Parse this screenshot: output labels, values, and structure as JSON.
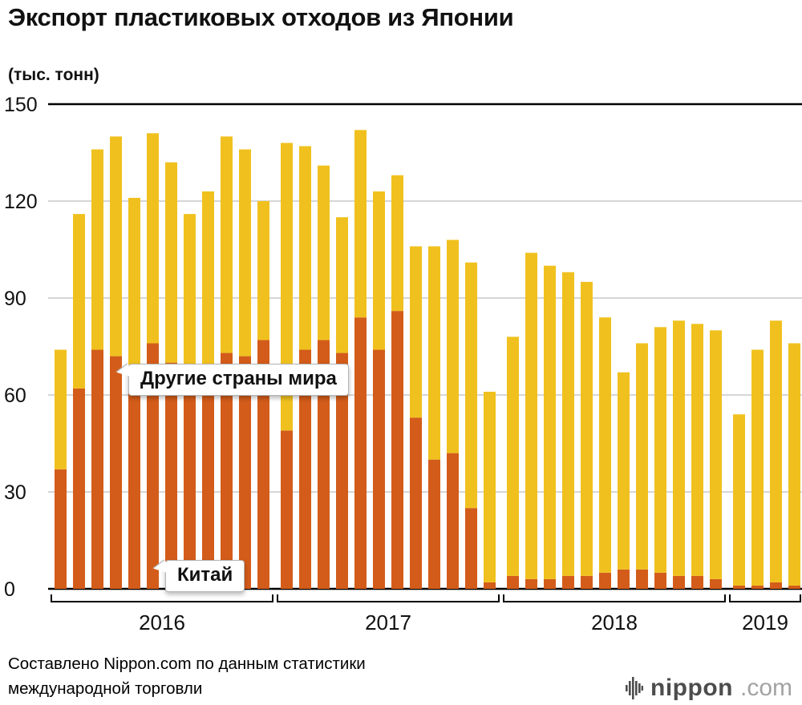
{
  "title": "Экспорт пластиковых отходов из Японии",
  "unit_label": "(тыс. тонн)",
  "annotations": {
    "others": "Другие страны мира",
    "china": "Китай"
  },
  "footer": {
    "source_line1": "Составлено Nippon.com по данным статистики",
    "source_line2": "международной торговли",
    "logo_name": "nippon",
    "logo_suffix": ".com"
  },
  "colors": {
    "china": "#d35c1a",
    "others": "#f0c11e",
    "grid": "#c8c8c8",
    "axis": "#000000"
  },
  "chart_data": {
    "type": "bar",
    "stacked": true,
    "title": "Экспорт пластиковых отходов из Японии",
    "ylabel": "тыс. тонн",
    "ylim": [
      0,
      150
    ],
    "yticks": [
      0,
      30,
      60,
      90,
      120,
      150
    ],
    "series_names": [
      "Китай",
      "Другие страны мира"
    ],
    "legend_position": "callouts-on-plot",
    "grid": true,
    "groups": [
      {
        "year": "2016",
        "china": [
          37,
          62,
          74,
          72,
          64,
          76,
          70,
          64,
          63,
          73,
          72,
          77
        ],
        "others": [
          37,
          54,
          62,
          68,
          57,
          65,
          62,
          52,
          60,
          67,
          64,
          43
        ]
      },
      {
        "year": "2017",
        "china": [
          49,
          74,
          77,
          73,
          84,
          74,
          86,
          53,
          40,
          42,
          25,
          2
        ],
        "others": [
          89,
          63,
          54,
          42,
          58,
          49,
          42,
          53,
          66,
          66,
          76,
          59
        ]
      },
      {
        "year": "2018",
        "china": [
          4,
          3,
          3,
          4,
          4,
          5,
          6,
          6,
          5,
          4,
          4,
          3
        ],
        "others": [
          74,
          101,
          97,
          94,
          91,
          79,
          61,
          70,
          76,
          79,
          78,
          77
        ]
      },
      {
        "year": "2019",
        "china": [
          1,
          1,
          2,
          1
        ],
        "others": [
          53,
          73,
          81,
          75
        ]
      }
    ]
  }
}
